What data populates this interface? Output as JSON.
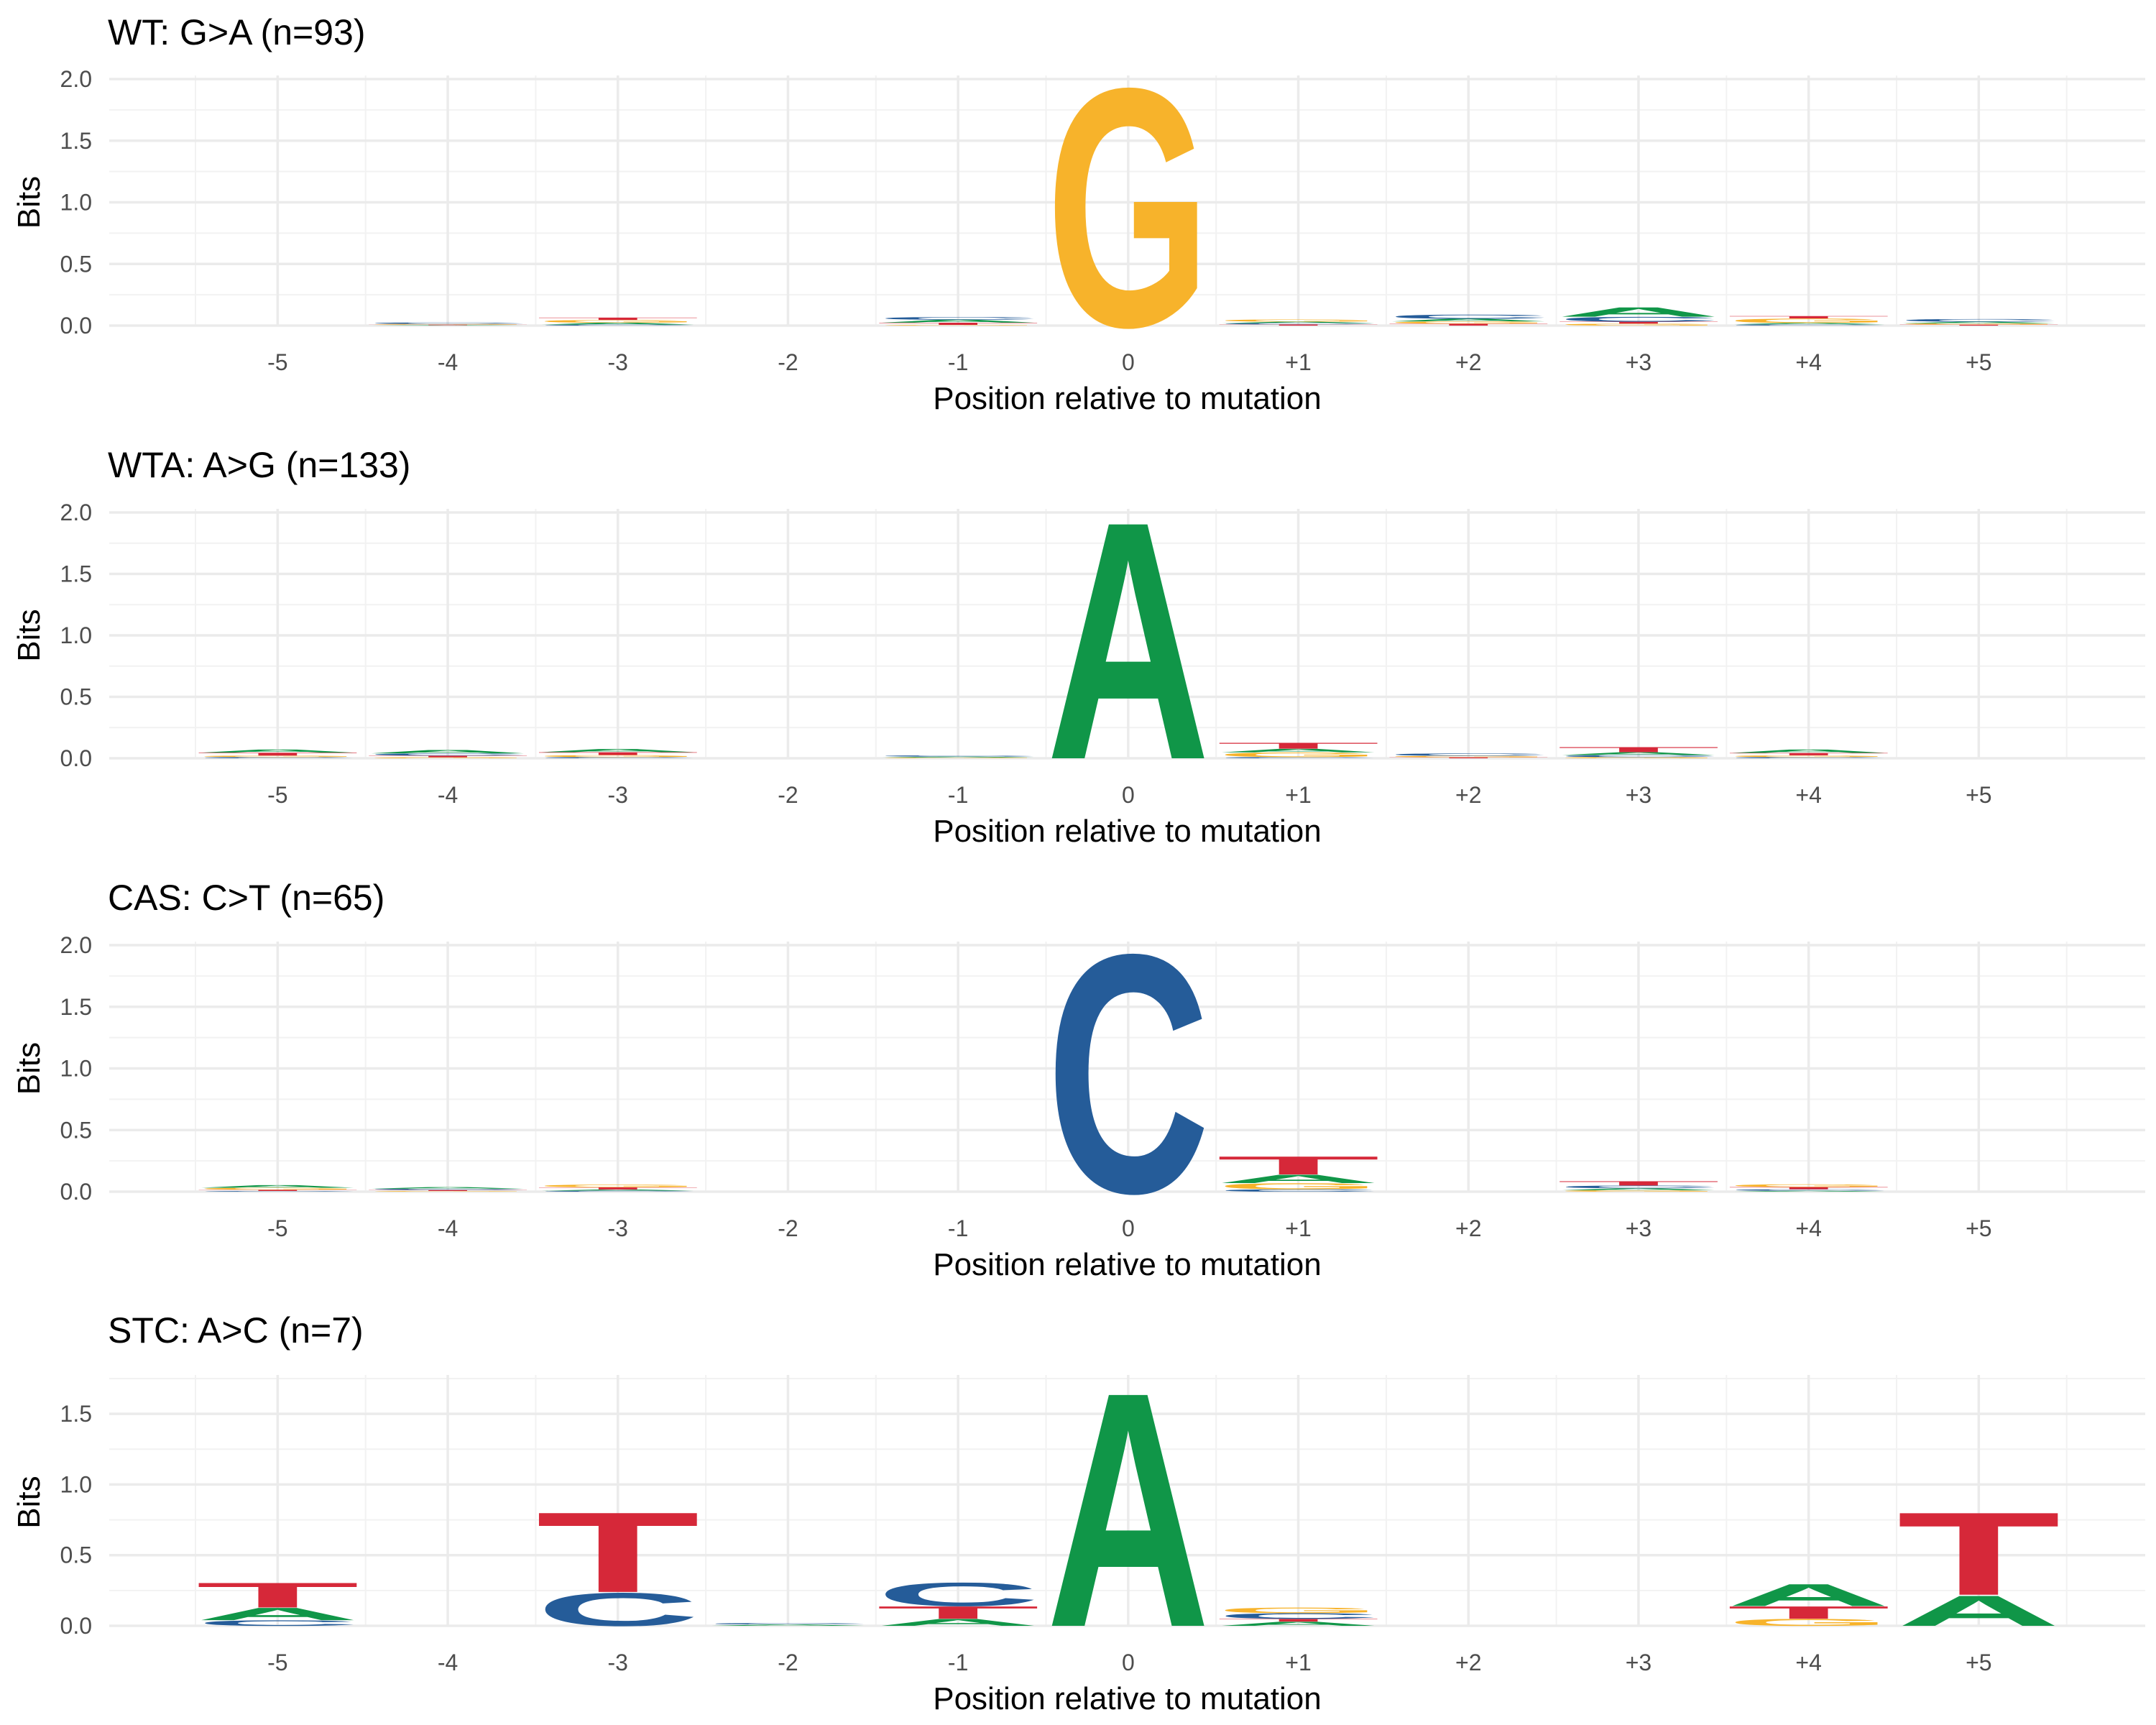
{
  "colors": {
    "A": "#109648",
    "C": "#255C99",
    "G": "#F7B32B",
    "T": "#D62839"
  },
  "chart_data": [
    {
      "type": "sequence-logo",
      "title": "WT: G>A (n=93)",
      "xlabel": "Position relative to mutation",
      "ylabel": "Bits",
      "ylim": [
        0,
        2
      ],
      "yticks": [
        "0.0",
        "0.5",
        "1.0",
        "1.5",
        "2.0"
      ],
      "positions": [
        "-5",
        "-4",
        "-3",
        "-2",
        "-1",
        "0",
        "+1",
        "+2",
        "+3",
        "+4",
        "+5"
      ],
      "columns": [
        [],
        [
          {
            "base": "A",
            "bits": 0.004
          },
          {
            "base": "T",
            "bits": 0.004
          },
          {
            "base": "G",
            "bits": 0.006
          },
          {
            "base": "C",
            "bits": 0.012
          }
        ],
        [
          {
            "base": "C",
            "bits": 0.008
          },
          {
            "base": "A",
            "bits": 0.016
          },
          {
            "base": "G",
            "bits": 0.022
          },
          {
            "base": "T",
            "bits": 0.02
          }
        ],
        [],
        [
          {
            "base": "G",
            "bits": 0.006
          },
          {
            "base": "T",
            "bits": 0.018
          },
          {
            "base": "A",
            "bits": 0.024
          },
          {
            "base": "C",
            "bits": 0.022
          }
        ],
        [
          {
            "base": "G",
            "bits": 1.98
          }
        ],
        [
          {
            "base": "T",
            "bits": 0.01
          },
          {
            "base": "C",
            "bits": 0.01
          },
          {
            "base": "A",
            "bits": 0.012
          },
          {
            "base": "G",
            "bits": 0.018
          }
        ],
        [
          {
            "base": "T",
            "bits": 0.016
          },
          {
            "base": "G",
            "bits": 0.018
          },
          {
            "base": "A",
            "bits": 0.022
          },
          {
            "base": "C",
            "bits": 0.034
          }
        ],
        [
          {
            "base": "G",
            "bits": 0.016
          },
          {
            "base": "T",
            "bits": 0.016
          },
          {
            "base": "C",
            "bits": 0.04
          },
          {
            "base": "A",
            "bits": 0.078
          }
        ],
        [
          {
            "base": "C",
            "bits": 0.01
          },
          {
            "base": "A",
            "bits": 0.012
          },
          {
            "base": "G",
            "bits": 0.036
          },
          {
            "base": "T",
            "bits": 0.02
          }
        ],
        [
          {
            "base": "T",
            "bits": 0.008
          },
          {
            "base": "G",
            "bits": 0.01
          },
          {
            "base": "A",
            "bits": 0.014
          },
          {
            "base": "C",
            "bits": 0.022
          }
        ]
      ]
    },
    {
      "type": "sequence-logo",
      "title": "WTA: A>G (n=133)",
      "xlabel": "Position relative to mutation",
      "ylabel": "Bits",
      "ylim": [
        0,
        2
      ],
      "yticks": [
        "0.0",
        "0.5",
        "1.0",
        "1.5",
        "2.0"
      ],
      "positions": [
        "-5",
        "-4",
        "-3",
        "-2",
        "-1",
        "0",
        "+1",
        "+2",
        "+3",
        "+4",
        "+5"
      ],
      "columns": [
        [
          {
            "base": "C",
            "bits": 0.01
          },
          {
            "base": "G",
            "bits": 0.012
          },
          {
            "base": "T",
            "bits": 0.024
          },
          {
            "base": "A",
            "bits": 0.026
          }
        ],
        [
          {
            "base": "G",
            "bits": 0.008
          },
          {
            "base": "T",
            "bits": 0.014
          },
          {
            "base": "C",
            "bits": 0.018
          },
          {
            "base": "A",
            "bits": 0.028
          }
        ],
        [
          {
            "base": "C",
            "bits": 0.01
          },
          {
            "base": "G",
            "bits": 0.016
          },
          {
            "base": "T",
            "bits": 0.024
          },
          {
            "base": "A",
            "bits": 0.026
          }
        ],
        [],
        [
          {
            "base": "G",
            "bits": 0.006
          },
          {
            "base": "A",
            "bits": 0.008
          },
          {
            "base": "C",
            "bits": 0.01
          }
        ],
        [
          {
            "base": "A",
            "bits": 1.98
          }
        ],
        [
          {
            "base": "C",
            "bits": 0.01
          },
          {
            "base": "G",
            "bits": 0.038
          },
          {
            "base": "A",
            "bits": 0.03
          },
          {
            "base": "T",
            "bits": 0.05
          }
        ],
        [
          {
            "base": "T",
            "bits": 0.008
          },
          {
            "base": "G",
            "bits": 0.012
          },
          {
            "base": "C",
            "bits": 0.02
          }
        ],
        [
          {
            "base": "G",
            "bits": 0.01
          },
          {
            "base": "C",
            "bits": 0.016
          },
          {
            "base": "A",
            "bits": 0.024
          },
          {
            "base": "T",
            "bits": 0.042
          }
        ],
        [
          {
            "base": "C",
            "bits": 0.01
          },
          {
            "base": "G",
            "bits": 0.014
          },
          {
            "base": "T",
            "bits": 0.02
          },
          {
            "base": "A",
            "bits": 0.028
          }
        ],
        []
      ]
    },
    {
      "type": "sequence-logo",
      "title": "CAS: C>T (n=65)",
      "xlabel": "Position relative to mutation",
      "ylabel": "Bits",
      "ylim": [
        0,
        2
      ],
      "yticks": [
        "0.0",
        "0.5",
        "1.0",
        "1.5",
        "2.0"
      ],
      "positions": [
        "-5",
        "-4",
        "-3",
        "-2",
        "-1",
        "0",
        "+1",
        "+2",
        "+3",
        "+4",
        "+5"
      ],
      "columns": [
        [
          {
            "base": "C",
            "bits": 0.006
          },
          {
            "base": "T",
            "bits": 0.01
          },
          {
            "base": "G",
            "bits": 0.016
          },
          {
            "base": "A",
            "bits": 0.022
          }
        ],
        [
          {
            "base": "G",
            "bits": 0.006
          },
          {
            "base": "T",
            "bits": 0.008
          },
          {
            "base": "C",
            "bits": 0.01
          },
          {
            "base": "A",
            "bits": 0.014
          }
        ],
        [
          {
            "base": "C",
            "bits": 0.008
          },
          {
            "base": "A",
            "bits": 0.01
          },
          {
            "base": "T",
            "bits": 0.018
          },
          {
            "base": "G",
            "bits": 0.022
          }
        ],
        [],
        [],
        [
          {
            "base": "C",
            "bits": 1.98
          }
        ],
        [
          {
            "base": "C",
            "bits": 0.02
          },
          {
            "base": "G",
            "bits": 0.05
          },
          {
            "base": "A",
            "bits": 0.07
          },
          {
            "base": "T",
            "bits": 0.15
          }
        ],
        [],
        [
          {
            "base": "G",
            "bits": 0.012
          },
          {
            "base": "A",
            "bits": 0.016
          },
          {
            "base": "C",
            "bits": 0.022
          },
          {
            "base": "T",
            "bits": 0.036
          }
        ],
        [
          {
            "base": "A",
            "bits": 0.008
          },
          {
            "base": "C",
            "bits": 0.012
          },
          {
            "base": "T",
            "bits": 0.018
          },
          {
            "base": "G",
            "bits": 0.022
          }
        ],
        []
      ]
    },
    {
      "type": "sequence-logo",
      "title": "STC: A>C (n=7)",
      "xlabel": "Position relative to mutation",
      "ylabel": "Bits",
      "ylim": [
        0,
        1.75
      ],
      "yticks": [
        "0.0",
        "0.5",
        "1.0",
        "1.5"
      ],
      "positions": [
        "-5",
        "-4",
        "-3",
        "-2",
        "-1",
        "0",
        "+1",
        "+2",
        "+3",
        "+4",
        "+5"
      ],
      "columns": [
        [
          {
            "base": "C",
            "bits": 0.04
          },
          {
            "base": "A",
            "bits": 0.09
          },
          {
            "base": "T",
            "bits": 0.18
          }
        ],
        [],
        [
          {
            "base": "C",
            "bits": 0.24
          },
          {
            "base": "T",
            "bits": 0.58
          }
        ],
        [
          {
            "base": "A",
            "bits": 0.01
          },
          {
            "base": "C",
            "bits": 0.01
          }
        ],
        [
          {
            "base": "A",
            "bits": 0.05
          },
          {
            "base": "T",
            "bits": 0.09
          },
          {
            "base": "C",
            "bits": 0.17
          }
        ],
        [
          {
            "base": "A",
            "bits": 1.7
          }
        ],
        [
          {
            "base": "A",
            "bits": 0.03
          },
          {
            "base": "T",
            "bits": 0.02
          },
          {
            "base": "C",
            "bits": 0.04
          },
          {
            "base": "G",
            "bits": 0.04
          }
        ],
        [],
        [],
        [
          {
            "base": "G",
            "bits": 0.05
          },
          {
            "base": "T",
            "bits": 0.09
          },
          {
            "base": "A",
            "bits": 0.16
          }
        ],
        [
          {
            "base": "A",
            "bits": 0.22
          },
          {
            "base": "T",
            "bits": 0.6
          }
        ]
      ]
    }
  ]
}
